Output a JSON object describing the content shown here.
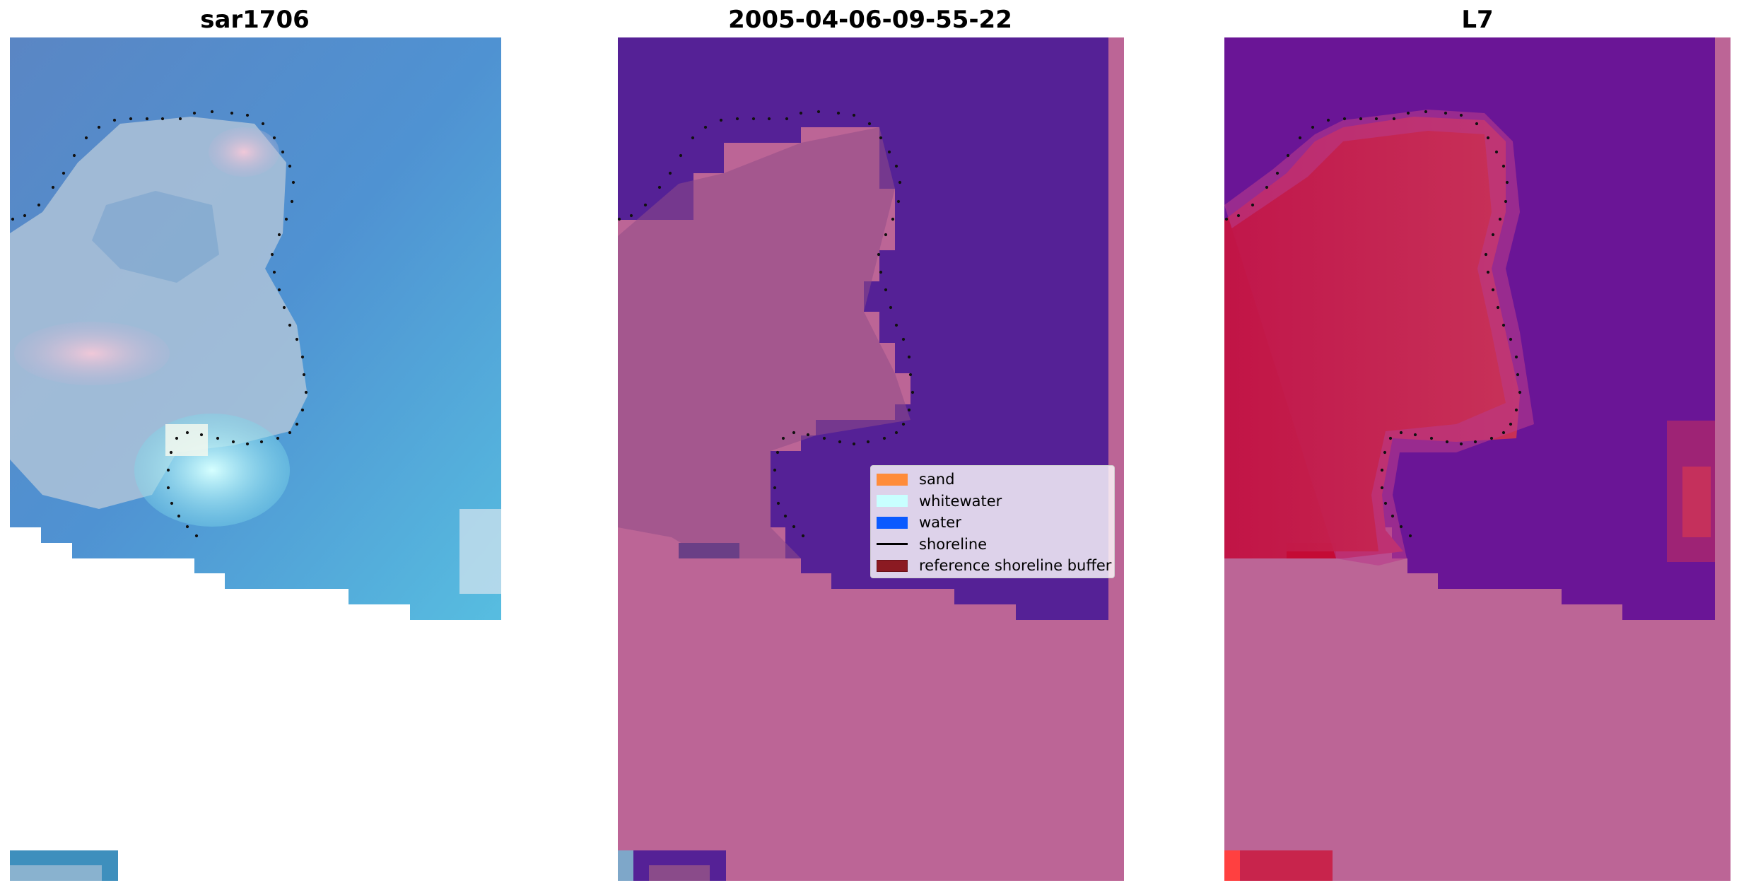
{
  "panels": [
    {
      "title": "sar1706",
      "kind": "rgb"
    },
    {
      "title": "2005-04-06-09-55-22",
      "kind": "classified"
    },
    {
      "title": "L7",
      "kind": "index"
    }
  ],
  "legend": {
    "items": [
      {
        "label": "sand",
        "color": "#ff8c3a",
        "type": "patch"
      },
      {
        "label": "whitewater",
        "color": "#c8ffff",
        "type": "patch"
      },
      {
        "label": "water",
        "color": "#0a5aff",
        "type": "patch"
      },
      {
        "label": "shoreline",
        "color": "#000000",
        "type": "line"
      },
      {
        "label": "reference shoreline buffer",
        "color": "#8b1a22",
        "type": "patch"
      }
    ]
  },
  "colors": {
    "sand_overlay": "#bc6596",
    "water_class": "#552196",
    "land_index": "#c8244c",
    "water_index": "#6a1596",
    "rgb_water": "#4f8fce",
    "rgb_whitewater": "#cdf3f7"
  }
}
